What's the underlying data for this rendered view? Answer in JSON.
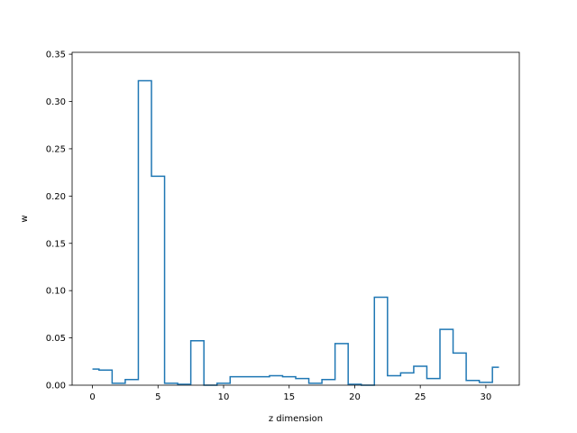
{
  "chart_data": {
    "type": "line",
    "drawstyle": "steps-mid",
    "xlabel": "z dimension",
    "ylabel": "w",
    "xlim": [
      -1.55,
      32.55
    ],
    "ylim": [
      0,
      0.352
    ],
    "xticks": [
      0,
      5,
      10,
      15,
      20,
      25,
      30
    ],
    "yticks": [
      0.0,
      0.05,
      0.1,
      0.15,
      0.2,
      0.25,
      0.3,
      0.35
    ],
    "ytick_labels": [
      "0.00",
      "0.05",
      "0.10",
      "0.15",
      "0.20",
      "0.25",
      "0.30",
      "0.35"
    ],
    "grid": false,
    "line_color": "#1f77b4",
    "series": [
      {
        "x": [
          0,
          1,
          2,
          3,
          4,
          5,
          6,
          7,
          8,
          9,
          10,
          11,
          12,
          13,
          14,
          15,
          16,
          17,
          18,
          19,
          20,
          21,
          22,
          23,
          24,
          25,
          26,
          27,
          28,
          29,
          30,
          31
        ],
        "values": [
          0.017,
          0.016,
          0.002,
          0.006,
          0.322,
          0.221,
          0.002,
          0.001,
          0.047,
          0.0,
          0.002,
          0.009,
          0.009,
          0.009,
          0.01,
          0.009,
          0.007,
          0.002,
          0.006,
          0.044,
          0.001,
          0.0,
          0.093,
          0.01,
          0.013,
          0.02,
          0.007,
          0.059,
          0.034,
          0.005,
          0.003,
          0.019
        ]
      }
    ]
  }
}
